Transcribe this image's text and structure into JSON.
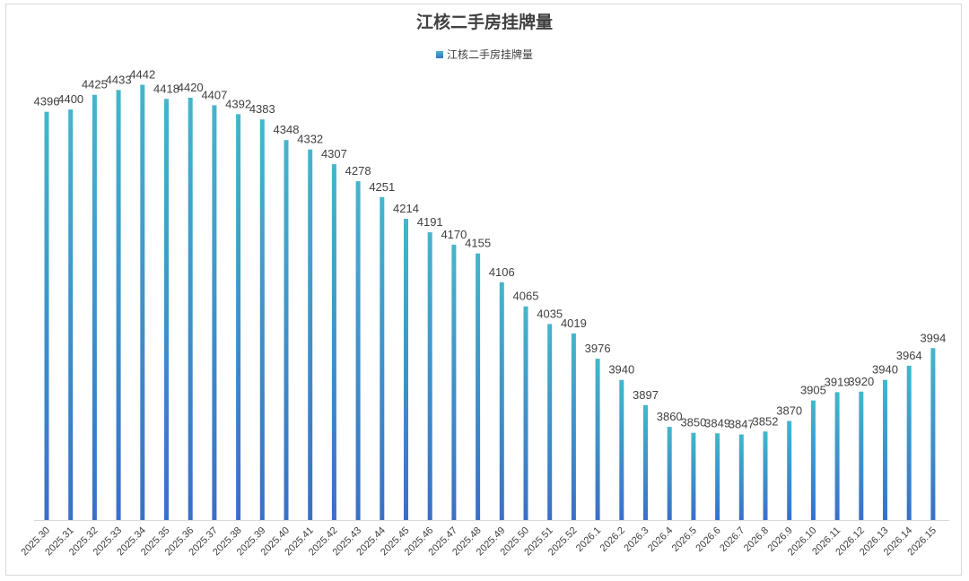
{
  "chart_data": {
    "type": "bar",
    "title": "江核二手房挂牌量",
    "legend_position": "top",
    "grid": false,
    "colors": {
      "bar_top": "#44b6cc",
      "bar_bottom": "#3a6fc8",
      "text": "#404040"
    },
    "categories": [
      "2025.30",
      "2025.31",
      "2025.32",
      "2025.33",
      "2025.34",
      "2025.35",
      "2025.36",
      "2025.37",
      "2025.38",
      "2025.39",
      "2025.40",
      "2025.41",
      "2025.42",
      "2025.43",
      "2025.44",
      "2025.45",
      "2025.46",
      "2025.47",
      "2025.48",
      "2025.49",
      "2025.50",
      "2025.51",
      "2025.52",
      "2026.1",
      "2026.2",
      "2026.3",
      "2026.4",
      "2026.5",
      "2026.6",
      "2026.7",
      "2026.8",
      "2026.9",
      "2026.10",
      "2026.11",
      "2026.12",
      "2026.13",
      "2026.14",
      "2026.15"
    ],
    "series": [
      {
        "name": "江核二手房挂牌量",
        "values": [
          4396,
          4400,
          4425,
          4433,
          4442,
          4418,
          4420,
          4407,
          4392,
          4383,
          4348,
          4332,
          4307,
          4278,
          4251,
          4214,
          4191,
          4170,
          4155,
          4106,
          4065,
          4035,
          4019,
          3976,
          3940,
          3897,
          3860,
          3850,
          3849,
          3847,
          3852,
          3870,
          3905,
          3919,
          3920,
          3940,
          3964,
          3994
        ]
      }
    ]
  }
}
